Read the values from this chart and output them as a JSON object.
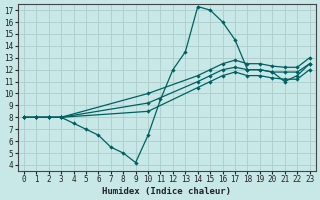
{
  "xlabel": "Humidex (Indice chaleur)",
  "xlim": [
    -0.5,
    23.5
  ],
  "ylim": [
    3.5,
    17.5
  ],
  "xticks": [
    0,
    1,
    2,
    3,
    4,
    5,
    6,
    7,
    8,
    9,
    10,
    11,
    12,
    13,
    14,
    15,
    16,
    17,
    18,
    19,
    20,
    21,
    22,
    23
  ],
  "yticks": [
    4,
    5,
    6,
    7,
    8,
    9,
    10,
    11,
    12,
    13,
    14,
    15,
    16,
    17
  ],
  "bg_color": "#c8e8e8",
  "line_color": "#006060",
  "grid_color": "#b0d0d0",
  "lines": [
    {
      "x": [
        0,
        1,
        2,
        3,
        4,
        5,
        6,
        7,
        8,
        9,
        10,
        11,
        12,
        13,
        14,
        15,
        16,
        17,
        18,
        19,
        20,
        21,
        22,
        23
      ],
      "y": [
        8,
        8,
        8,
        8,
        7.5,
        7,
        6.5,
        5.5,
        5,
        4.2,
        6.5,
        9.5,
        12.0,
        13.5,
        17.3,
        17.0,
        16.0,
        14.5,
        12.0,
        12.0,
        11.8,
        11.0,
        11.5,
        12.5
      ]
    },
    {
      "x": [
        0,
        1,
        2,
        3,
        10,
        14,
        15,
        16,
        17,
        18,
        19,
        20,
        21,
        22,
        23
      ],
      "y": [
        8,
        8,
        8,
        8,
        8.5,
        10.5,
        11.0,
        11.5,
        11.8,
        11.5,
        11.5,
        11.3,
        11.2,
        11.2,
        12.0
      ]
    },
    {
      "x": [
        0,
        1,
        2,
        3,
        10,
        14,
        15,
        16,
        17,
        18,
        19,
        20,
        21,
        22,
        23
      ],
      "y": [
        8,
        8,
        8,
        8,
        9.2,
        11.0,
        11.5,
        12.0,
        12.2,
        12.0,
        12.0,
        11.8,
        11.8,
        11.8,
        12.5
      ]
    },
    {
      "x": [
        0,
        1,
        2,
        3,
        10,
        14,
        15,
        16,
        17,
        18,
        19,
        20,
        21,
        22,
        23
      ],
      "y": [
        8,
        8,
        8,
        8,
        10.0,
        11.5,
        12.0,
        12.5,
        12.8,
        12.5,
        12.5,
        12.3,
        12.2,
        12.2,
        13.0
      ]
    }
  ]
}
